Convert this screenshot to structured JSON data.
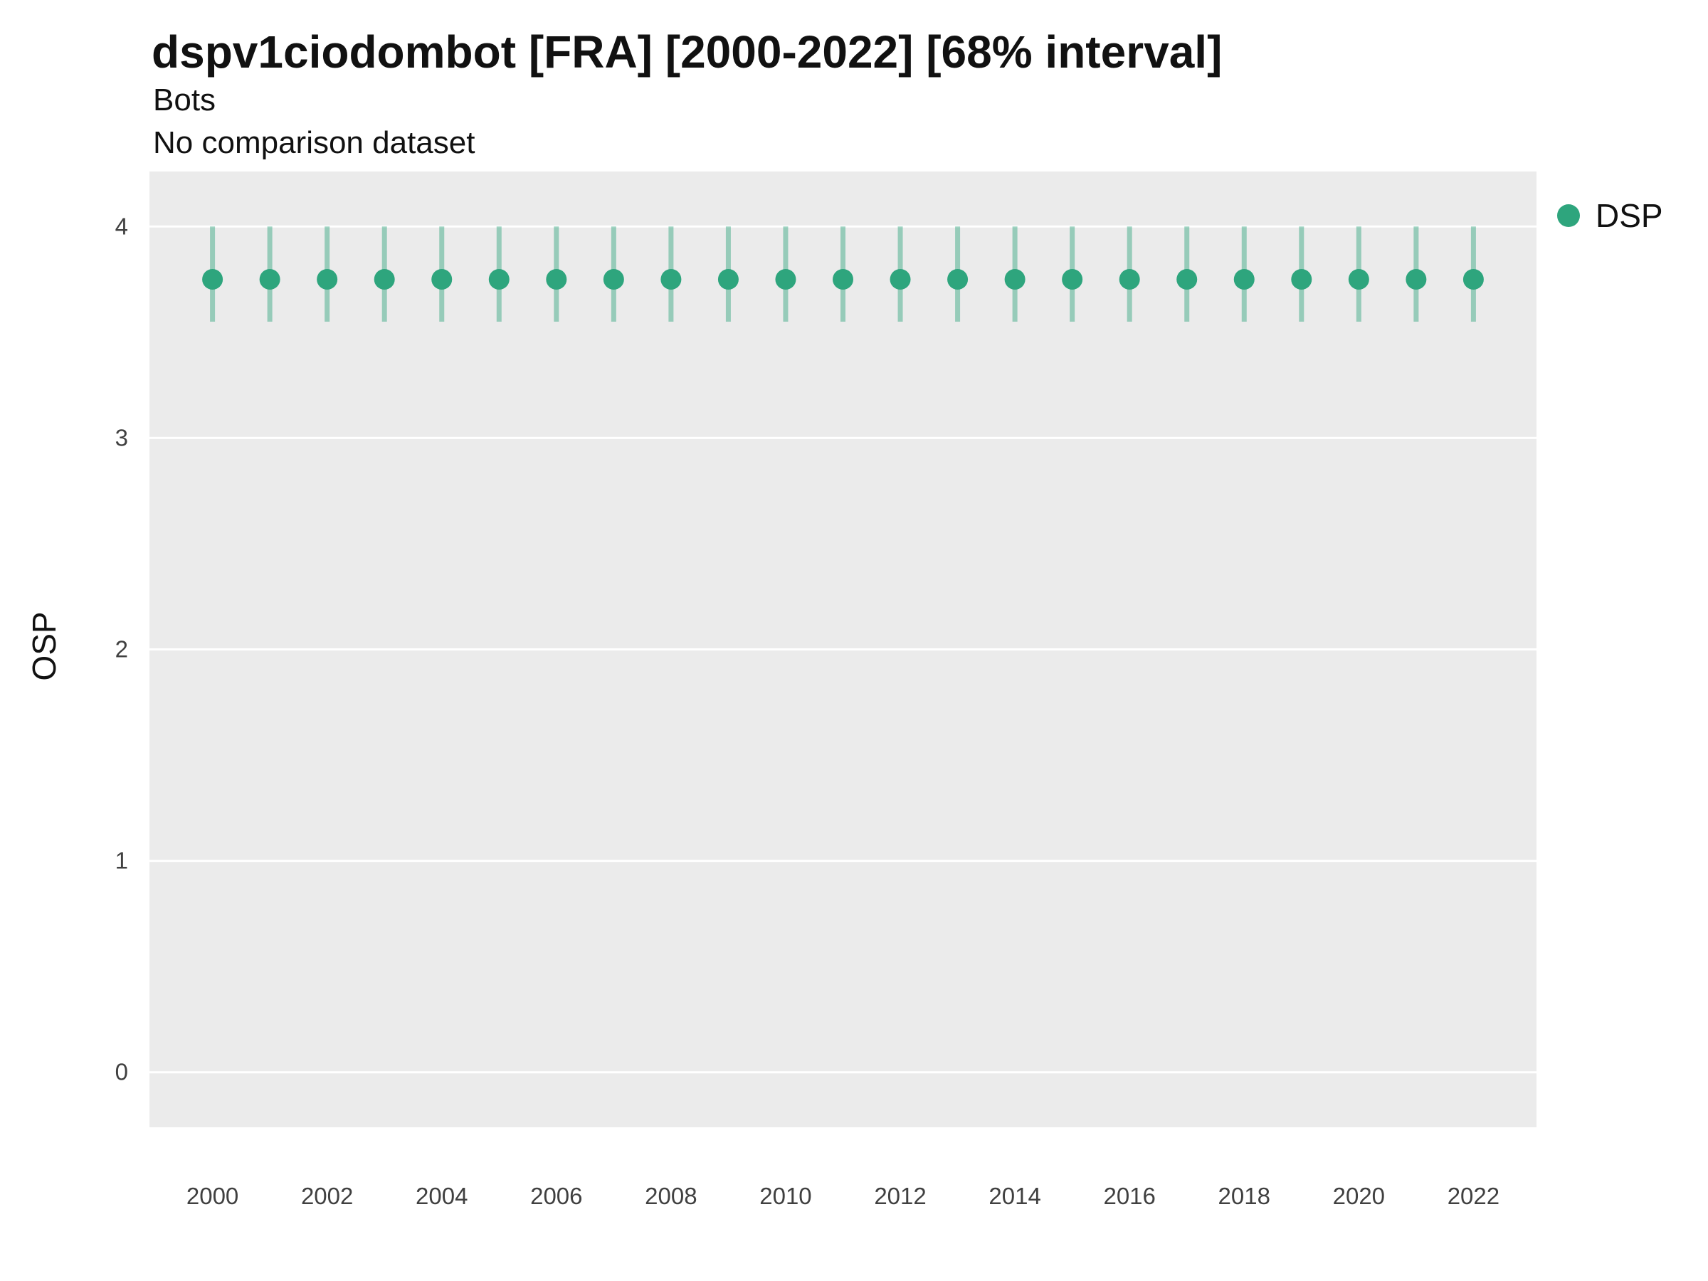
{
  "header": {
    "title": "dspv1ciodombot [FRA] [2000-2022] [68% interval]",
    "subtitle": "Bots",
    "note": "No comparison dataset"
  },
  "legend": {
    "position": "right",
    "items": [
      {
        "label": "DSP",
        "color": "#2EA57D"
      }
    ]
  },
  "chart_data": {
    "type": "scatter",
    "title": "dspv1ciodombot [FRA] [2000-2022] [68% interval]",
    "subtitle": "Bots",
    "note": "No comparison dataset",
    "xlabel": "",
    "ylabel": "OSP",
    "x": [
      2000,
      2001,
      2002,
      2003,
      2004,
      2005,
      2006,
      2007,
      2008,
      2009,
      2010,
      2011,
      2012,
      2013,
      2014,
      2015,
      2016,
      2017,
      2018,
      2019,
      2020,
      2021,
      2022
    ],
    "series": [
      {
        "name": "DSP",
        "mean": [
          3.75,
          3.75,
          3.75,
          3.75,
          3.75,
          3.75,
          3.75,
          3.75,
          3.75,
          3.75,
          3.75,
          3.75,
          3.75,
          3.75,
          3.75,
          3.75,
          3.75,
          3.75,
          3.75,
          3.75,
          3.75,
          3.75,
          3.75
        ],
        "lower": [
          3.55,
          3.55,
          3.55,
          3.55,
          3.55,
          3.55,
          3.55,
          3.55,
          3.55,
          3.55,
          3.55,
          3.55,
          3.55,
          3.55,
          3.55,
          3.55,
          3.55,
          3.55,
          3.55,
          3.55,
          3.55,
          3.55,
          3.55
        ],
        "upper": [
          4.0,
          4.0,
          4.0,
          4.0,
          4.0,
          4.0,
          4.0,
          4.0,
          4.0,
          4.0,
          4.0,
          4.0,
          4.0,
          4.0,
          4.0,
          4.0,
          4.0,
          4.0,
          4.0,
          4.0,
          4.0,
          4.0,
          4.0
        ],
        "interval": "68%"
      }
    ],
    "xlim": [
      1998.9,
      2023.1
    ],
    "ylim": [
      -0.26,
      4.26
    ],
    "yticks": [
      0,
      1,
      2,
      3,
      4
    ],
    "xticks": [
      2000,
      2002,
      2004,
      2006,
      2008,
      2010,
      2012,
      2014,
      2016,
      2018,
      2020,
      2022
    ],
    "grid": "horizontal-major",
    "legend_position": "right",
    "colors": {
      "point": "#2EA57D",
      "errorbar": "#2EA57D",
      "errorbar_opacity": 0.45,
      "panel": "#EBEBEB",
      "grid": "#FFFFFF"
    }
  }
}
